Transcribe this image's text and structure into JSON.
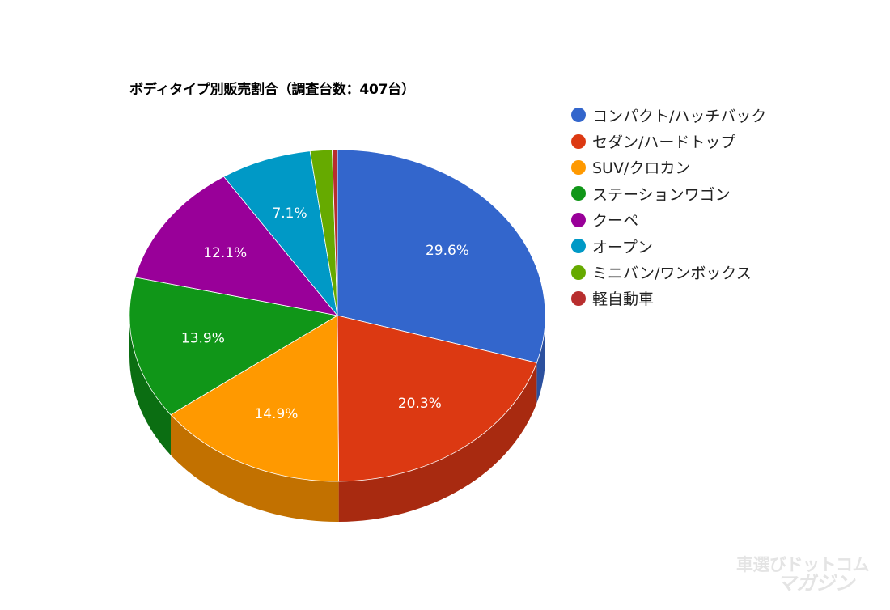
{
  "chart_data": {
    "type": "pie",
    "title": "ボディタイプ別販売割合（調査台数：407台）",
    "labels": [
      "コンパクト/ハッチバック",
      "セダン/ハードトップ",
      "SUV/クロカン",
      "ステーションワゴン",
      "クーペ",
      "オープン",
      "ミニバン/ワンボックス",
      "軽自動車"
    ],
    "values": [
      29.6,
      20.3,
      14.9,
      13.9,
      12.1,
      7.1,
      1.7,
      0.4
    ],
    "data_labels": [
      "29.6%",
      "20.3%",
      "14.9%",
      "13.9%",
      "12.1%",
      "7.1%",
      "",
      ""
    ],
    "colors": [
      "#3366cc",
      "#dc3912",
      "#ff9900",
      "#109618",
      "#990099",
      "#0099c6",
      "#66aa00",
      "#b82e2e"
    ],
    "side_colors": [
      "#2c509e",
      "#a82a10",
      "#c27100",
      "#0b6e12",
      "#73006f",
      "#0077a0",
      "#4d8000",
      "#8a2222"
    ],
    "legend_position": "right",
    "is_3d": true
  },
  "watermark": {
    "line1": "車選びドットコム",
    "line2": "マガジン"
  }
}
